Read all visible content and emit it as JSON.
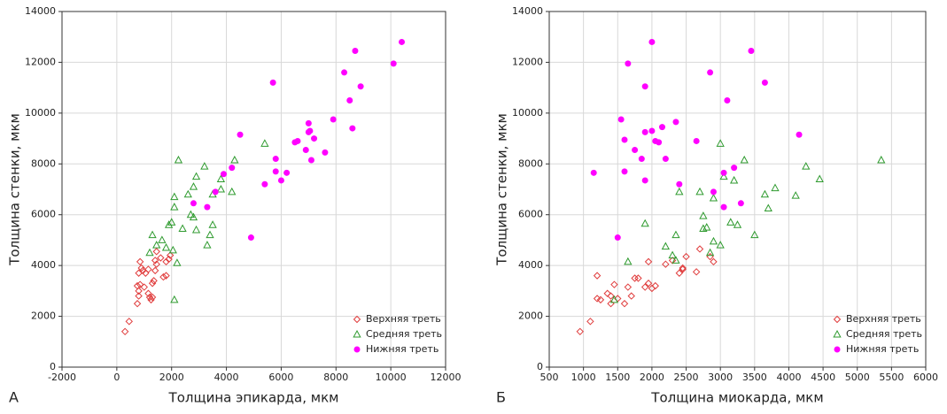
{
  "chart_data": [
    {
      "type": "scatter",
      "panel_label": "А",
      "xlabel": "Толщина эпикарда, мкм",
      "ylabel": "Толщина стенки, мкм",
      "xlim": [
        -2000,
        12000
      ],
      "ylim": [
        0,
        14000
      ],
      "xticks": [
        -2000,
        0,
        2000,
        4000,
        6000,
        8000,
        10000,
        12000
      ],
      "yticks": [
        0,
        2000,
        4000,
        6000,
        8000,
        10000,
        12000,
        14000
      ],
      "grid": true,
      "legend": "lower right",
      "series": [
        {
          "name": "Верхняя треть",
          "color": "#e03c3c",
          "marker": "diamond",
          "x": [
            300,
            450,
            750,
            800,
            800,
            750,
            850,
            800,
            900,
            850,
            950,
            1050,
            1000,
            1150,
            1200,
            1300,
            1300,
            1350,
            1250,
            1400,
            1450,
            1400,
            1450,
            1600,
            1700,
            1800,
            1800,
            1900,
            1950,
            1150
          ],
          "values": [
            1400,
            1800,
            2500,
            2800,
            3000,
            3200,
            3250,
            3700,
            3900,
            4150,
            3800,
            3700,
            3150,
            2900,
            2750,
            2750,
            3300,
            3400,
            2650,
            3800,
            4050,
            4200,
            4550,
            4300,
            3550,
            3600,
            4150,
            4250,
            4400,
            3850
          ]
        },
        {
          "name": "Средняя треть",
          "color": "#2e9a2e",
          "marker": "triangle",
          "x": [
            2100,
            1300,
            1200,
            1450,
            1650,
            1800,
            1900,
            2000,
            2100,
            2100,
            2200,
            2050,
            2250,
            2400,
            2600,
            2800,
            2900,
            2800,
            2900,
            3200,
            3300,
            3500,
            3400,
            3500,
            3800,
            3800,
            4200,
            4300,
            5400,
            2700
          ],
          "values": [
            2650,
            5200,
            4500,
            4800,
            5000,
            4700,
            5600,
            5700,
            6300,
            6700,
            4100,
            4600,
            8150,
            5450,
            6800,
            7100,
            7500,
            5900,
            5400,
            7900,
            4800,
            5600,
            5200,
            6800,
            7000,
            7400,
            6900,
            8150,
            8800,
            6000
          ]
        },
        {
          "name": "Нижняя треть",
          "color": "#ff00ff",
          "marker": "circle",
          "x": [
            2800,
            3300,
            3600,
            3900,
            4200,
            4500,
            4900,
            5400,
            5700,
            5800,
            5800,
            6000,
            6200,
            6500,
            6600,
            6900,
            7000,
            7000,
            7100,
            7200,
            7600,
            7900,
            8300,
            8500,
            8600,
            8700,
            8900,
            10100,
            10400,
            7050
          ],
          "values": [
            6450,
            6300,
            6900,
            7600,
            7850,
            9150,
            5100,
            7200,
            11200,
            8200,
            7700,
            7350,
            7650,
            8850,
            8900,
            8550,
            9250,
            9600,
            8150,
            9000,
            8450,
            9750,
            11600,
            10500,
            9400,
            12450,
            11050,
            11950,
            12800,
            9300
          ]
        }
      ]
    },
    {
      "type": "scatter",
      "panel_label": "Б",
      "xlabel": "Толщина миокарда, мкм",
      "ylabel": "Толщина стенки, мкм",
      "xlim": [
        500,
        6000
      ],
      "ylim": [
        0,
        14000
      ],
      "xticks": [
        500,
        1000,
        1500,
        2000,
        2500,
        3000,
        3500,
        4000,
        4500,
        5000,
        5500,
        6000
      ],
      "yticks": [
        0,
        2000,
        4000,
        6000,
        8000,
        10000,
        12000,
        14000
      ],
      "grid": true,
      "legend": "lower right",
      "series": [
        {
          "name": "Верхняя треть",
          "color": "#e03c3c",
          "marker": "diamond",
          "x": [
            950,
            1100,
            1200,
            1250,
            1200,
            1350,
            1400,
            1400,
            1450,
            1500,
            1600,
            1650,
            1700,
            1750,
            1800,
            1900,
            1950,
            1950,
            2000,
            2050,
            2200,
            2300,
            2400,
            2450,
            2500,
            2650,
            2700,
            2850,
            2900,
            2450
          ],
          "values": [
            1400,
            1800,
            2700,
            2650,
            3600,
            2900,
            2500,
            2800,
            3250,
            2700,
            2500,
            3150,
            2800,
            3500,
            3500,
            3150,
            3300,
            4150,
            3100,
            3200,
            4050,
            4200,
            3700,
            3850,
            4350,
            3750,
            4650,
            4350,
            4150,
            3900
          ]
        },
        {
          "name": "Средняя треть",
          "color": "#2e9a2e",
          "marker": "triangle",
          "x": [
            1450,
            1650,
            1900,
            2200,
            2300,
            2350,
            2400,
            2700,
            2750,
            2750,
            2800,
            2850,
            2900,
            2900,
            3000,
            3000,
            3150,
            3200,
            3250,
            3350,
            3500,
            3650,
            3700,
            3800,
            4100,
            4250,
            4450,
            5350,
            3050,
            2350
          ],
          "values": [
            2650,
            4150,
            5650,
            4750,
            4400,
            5200,
            6900,
            6900,
            5950,
            5450,
            5500,
            4500,
            6650,
            4950,
            4800,
            8800,
            5700,
            7350,
            5600,
            8150,
            5200,
            6800,
            6250,
            7050,
            6750,
            7900,
            7400,
            8150,
            7500,
            4200
          ]
        },
        {
          "name": "Нижняя треть",
          "color": "#ff00ff",
          "marker": "circle",
          "x": [
            1150,
            1500,
            1550,
            1600,
            1600,
            1650,
            1750,
            1850,
            1900,
            1900,
            1900,
            2000,
            2000,
            2050,
            2100,
            2150,
            2200,
            2350,
            2400,
            2850,
            2900,
            3050,
            3050,
            3100,
            3200,
            3300,
            3450,
            3650,
            4150,
            2650
          ],
          "values": [
            7650,
            5100,
            9750,
            8950,
            7700,
            11950,
            8550,
            8200,
            9250,
            11050,
            7350,
            9300,
            12800,
            8900,
            8850,
            9450,
            8200,
            9650,
            7200,
            11600,
            6900,
            7650,
            6300,
            10500,
            7850,
            6450,
            12450,
            11200,
            9150,
            8900
          ]
        }
      ]
    }
  ]
}
